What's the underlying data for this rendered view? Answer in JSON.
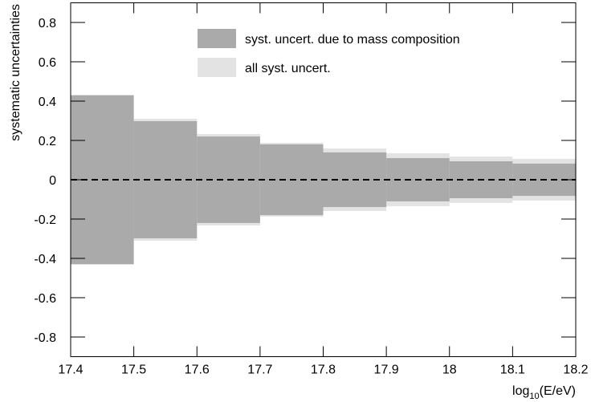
{
  "chart_data": {
    "type": "symmetric-band-histogram",
    "y_label": "systematic uncertainties",
    "x_label": [
      "log",
      "10",
      "(E/eV)"
    ],
    "bins": [
      17.4,
      17.5,
      17.6,
      17.7,
      17.8,
      17.9,
      18,
      18.1,
      18.2
    ],
    "series": [
      {
        "name": "all syst. uncert.",
        "color": "#e3e3e3",
        "values": [
          0.43,
          0.31,
          0.233,
          0.188,
          0.159,
          0.135,
          0.118,
          0.106
        ]
      },
      {
        "name": "syst. uncert. due to mass composition",
        "color": "#aaaaaa",
        "values": [
          0.43,
          0.298,
          0.22,
          0.18,
          0.139,
          0.11,
          0.094,
          0.082
        ]
      }
    ],
    "legend_order": [
      1,
      0
    ],
    "hline": 0,
    "xlim": [
      17.4,
      18.2
    ],
    "ylim": [
      -0.9,
      0.9
    ],
    "xticks": [
      17.4,
      17.5,
      17.6,
      17.7,
      17.8,
      17.9,
      18,
      18.1,
      18.2
    ],
    "yticks": [
      -0.8,
      -0.6,
      -0.4,
      -0.2,
      0,
      0.2,
      0.4,
      0.6,
      0.8
    ]
  }
}
